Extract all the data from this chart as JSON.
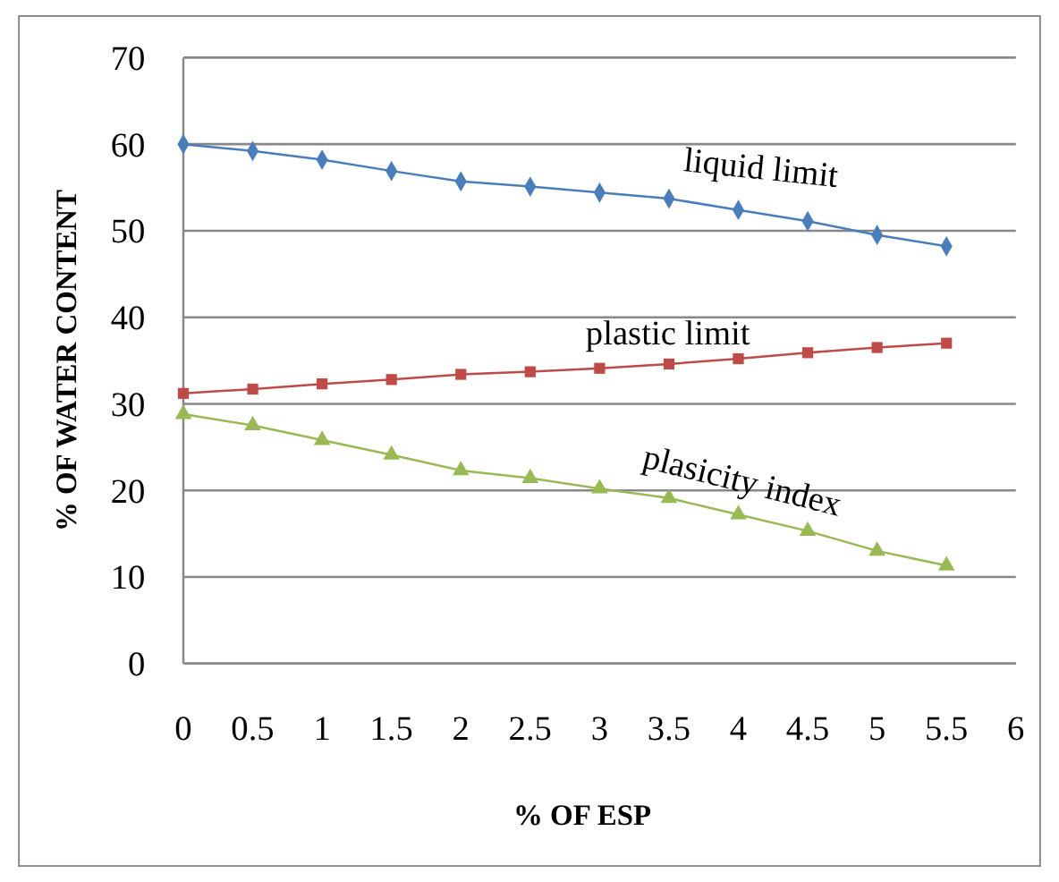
{
  "chart_data": {
    "type": "line",
    "xlabel": "% OF ESP",
    "ylabel": "% OF WATER CONTENT",
    "x": [
      0,
      0.5,
      1,
      1.5,
      2,
      2.5,
      3,
      3.5,
      4,
      4.5,
      5,
      5.5
    ],
    "xlim": [
      0,
      6
    ],
    "xticks": [
      0,
      0.5,
      1,
      1.5,
      2,
      2.5,
      3,
      3.5,
      4,
      4.5,
      5,
      5.5,
      6
    ],
    "ylim": [
      0,
      70
    ],
    "yticks": [
      0,
      10,
      20,
      30,
      40,
      50,
      60,
      70
    ],
    "grid": "y",
    "legend": false,
    "series": [
      {
        "name": "liquid limit",
        "color": "#4a7ebb",
        "marker": "diamond",
        "values": [
          60,
          59.2,
          58.2,
          56.9,
          55.7,
          55.1,
          54.4,
          53.7,
          52.4,
          51.1,
          49.5,
          48.2
        ]
      },
      {
        "name": "plastic limit",
        "color": "#be4b48",
        "marker": "square",
        "values": [
          31.2,
          31.7,
          32.3,
          32.8,
          33.4,
          33.7,
          34.1,
          34.6,
          35.2,
          35.9,
          36.5,
          37
        ]
      },
      {
        "name": "plasicity index",
        "color": "#98b954",
        "marker": "triangle",
        "values": [
          28.8,
          27.5,
          25.8,
          24.1,
          22.3,
          21.4,
          20.2,
          19.1,
          17.2,
          15.3,
          13,
          11.3
        ]
      }
    ]
  }
}
